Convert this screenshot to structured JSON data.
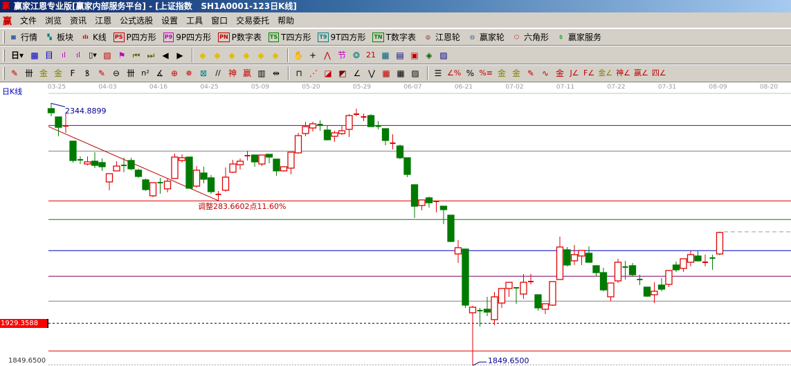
{
  "window": {
    "title": "赢家江恩专业版[赢家内部服务平台] - [上证指数   SH1A0001-123日K线]",
    "logo": "赢"
  },
  "menu": {
    "logo": "赢",
    "items": [
      "文件",
      "浏览",
      "资讯",
      "江恩",
      "公式选股",
      "设置",
      "工具",
      "窗口",
      "交易委托",
      "帮助"
    ]
  },
  "toolbar1": [
    {
      "icon": "table-icon",
      "glyph": "▦",
      "color": "#003399",
      "label": "行情"
    },
    {
      "icon": "sectors-icon",
      "glyph": "▚",
      "color": "#008080",
      "label": "板块"
    },
    {
      "icon": "candlestick-icon",
      "glyph": "ıIı",
      "color": "#d00000",
      "label": "K线"
    },
    {
      "icon": "ps-icon",
      "glyph": "PS",
      "color": "#c00000",
      "label": "P四方形"
    },
    {
      "icon": "p9-icon",
      "glyph": "P9",
      "color": "#c000c0",
      "label": "9P四方形"
    },
    {
      "icon": "pn-icon",
      "glyph": "PN",
      "color": "#c00000",
      "label": "P数字表"
    },
    {
      "icon": "ts-icon",
      "glyph": "TS",
      "color": "#008000",
      "label": "T四方形"
    },
    {
      "icon": "t9-icon",
      "glyph": "T9",
      "color": "#008080",
      "label": "9T四方形"
    },
    {
      "icon": "tn-icon",
      "glyph": "TN",
      "color": "#008000",
      "label": "T数字表"
    },
    {
      "icon": "gann-wheel-icon",
      "glyph": "◎",
      "color": "#800000",
      "label": "江恩轮"
    },
    {
      "icon": "winner-wheel-icon",
      "glyph": "◍",
      "color": "#336699",
      "label": "赢家轮"
    },
    {
      "icon": "hexagon-icon",
      "glyph": "⬡",
      "color": "#c00000",
      "label": "六角形"
    },
    {
      "icon": "dollar-icon",
      "glyph": "$",
      "color": "#33aa33",
      "label": "赢家服务"
    }
  ],
  "toolbar2": {
    "period": "日",
    "icons": [
      {
        "name": "chart-type-icon",
        "glyph": "▩",
        "color": "#0000c0"
      },
      {
        "name": "notes-icon",
        "glyph": "目",
        "color": "#0000c0"
      },
      {
        "name": "volume3-icon",
        "glyph": "ıl",
        "color": "#c000c0"
      },
      {
        "name": "volume9-icon",
        "glyph": "ıl",
        "color": "#c000c0"
      },
      {
        "name": "candle-dropdown-icon",
        "glyph": "▯▾",
        "color": "#000"
      },
      {
        "name": "indicator-icon",
        "glyph": "▧",
        "color": "#c00000"
      },
      {
        "name": "flag-icon",
        "glyph": "⚑",
        "color": "#c000c0"
      },
      {
        "name": "first-icon",
        "glyph": "⏮",
        "color": "#606000"
      },
      {
        "name": "last-icon",
        "glyph": "⏭",
        "color": "#606000"
      },
      {
        "name": "left-icon",
        "glyph": "◀",
        "color": "#000"
      },
      {
        "name": "right-icon",
        "glyph": "▶",
        "color": "#000"
      },
      {
        "name": "zoom-left-icon",
        "glyph": "◆",
        "color": "#e0c000"
      },
      {
        "name": "zoom-right-icon",
        "glyph": "◆",
        "color": "#e0c000"
      },
      {
        "name": "expand-h-icon",
        "glyph": "◆",
        "color": "#e0c000"
      },
      {
        "name": "shrink-h-icon",
        "glyph": "◆",
        "color": "#e0c000"
      },
      {
        "name": "shrink-v-icon",
        "glyph": "◆",
        "color": "#e0c000"
      },
      {
        "name": "expand-v-icon",
        "glyph": "◆",
        "color": "#e0c000"
      },
      {
        "name": "hand-icon",
        "glyph": "✋",
        "color": "#000"
      },
      {
        "name": "crosshair-icon",
        "glyph": "+",
        "color": "#000"
      },
      {
        "name": "line-tool-icon",
        "glyph": "⋀",
        "color": "#c00000"
      },
      {
        "name": "node-icon",
        "glyph": "节",
        "color": "#c000c0"
      },
      {
        "name": "brain-icon",
        "glyph": "❂",
        "color": "#008080"
      },
      {
        "name": "calendar-icon",
        "glyph": "21",
        "color": "#c00000"
      },
      {
        "name": "calculator-icon",
        "glyph": "▦",
        "color": "#006080"
      },
      {
        "name": "report-icon",
        "glyph": "▤",
        "color": "#000080"
      },
      {
        "name": "save-icon",
        "glyph": "▣",
        "color": "#c00000"
      },
      {
        "name": "network-icon",
        "glyph": "◈",
        "color": "#006000"
      },
      {
        "name": "trade-icon",
        "glyph": "▨",
        "color": "#000080"
      }
    ]
  },
  "toolbar3": [
    {
      "name": "pen-icon",
      "glyph": "✎",
      "color": "#c00000"
    },
    {
      "name": "lines-icon",
      "glyph": "卌",
      "color": "#000"
    },
    {
      "name": "gold1-icon",
      "glyph": "金",
      "color": "#808000"
    },
    {
      "name": "gold2-icon",
      "glyph": "金",
      "color": "#808000"
    },
    {
      "name": "fib-icon",
      "glyph": "F",
      "color": "#000"
    },
    {
      "name": "spiral-icon",
      "glyph": "ꝸ",
      "color": "#000"
    },
    {
      "name": "pen-ruler-icon",
      "glyph": "✎",
      "color": "#c00000"
    },
    {
      "name": "circle-ruler-icon",
      "glyph": "⊖",
      "color": "#000"
    },
    {
      "name": "parallel-icon",
      "glyph": "卌",
      "color": "#000"
    },
    {
      "name": "n2-icon",
      "glyph": "n²",
      "color": "#000"
    },
    {
      "name": "angle-icon",
      "glyph": "∡",
      "color": "#000"
    },
    {
      "name": "target-icon",
      "glyph": "⊕",
      "color": "#c00000"
    },
    {
      "name": "star-icon",
      "glyph": "✵",
      "color": "#c00000"
    },
    {
      "name": "box-icon",
      "glyph": "⊠",
      "color": "#008080"
    },
    {
      "name": "slash-icon",
      "glyph": "//",
      "color": "#000"
    },
    {
      "name": "shen-icon",
      "glyph": "神",
      "color": "#c00000"
    },
    {
      "name": "ying-icon",
      "glyph": "赢",
      "color": "#c00000"
    },
    {
      "name": "grid-icon",
      "glyph": "▥",
      "color": "#000"
    },
    {
      "name": "measure-icon",
      "glyph": "⇹",
      "color": "#000"
    },
    {
      "name": "sep",
      "glyph": ""
    },
    {
      "name": "box-line-icon",
      "glyph": "⊓",
      "color": "#000"
    },
    {
      "name": "fan-icon",
      "glyph": "⋰",
      "color": "#c00000"
    },
    {
      "name": "square-fan-icon",
      "glyph": "◪",
      "color": "#c00000"
    },
    {
      "name": "square-fan2-icon",
      "glyph": "◩",
      "color": "#800000"
    },
    {
      "name": "gann-fan-icon",
      "glyph": "∠",
      "color": "#000"
    },
    {
      "name": "zigzag-icon",
      "glyph": "⋁",
      "color": "#000"
    },
    {
      "name": "grid-red-icon",
      "glyph": "▦",
      "color": "#c00000"
    },
    {
      "name": "grid-box-icon",
      "glyph": "▦",
      "color": "#000"
    },
    {
      "name": "hatch-icon",
      "glyph": "▨",
      "color": "#000"
    },
    {
      "name": "sep",
      "glyph": ""
    },
    {
      "name": "levels-icon",
      "glyph": "☰",
      "color": "#000"
    },
    {
      "name": "pct-angle-icon",
      "glyph": "∠%",
      "color": "#c00000"
    },
    {
      "name": "percent-icon",
      "glyph": "%",
      "color": "#000"
    },
    {
      "name": "pct-lines-icon",
      "glyph": "%≡",
      "color": "#c00000"
    },
    {
      "name": "gold-circle-icon",
      "glyph": "金",
      "color": "#808000"
    },
    {
      "name": "gold-lines-icon",
      "glyph": "金",
      "color": "#808000"
    },
    {
      "name": "pen-bar-icon",
      "glyph": "✎",
      "color": "#c00000"
    },
    {
      "name": "wave-icon",
      "glyph": "∿",
      "color": "#c00000"
    },
    {
      "name": "gold-bar-icon",
      "glyph": "金",
      "color": "#c00000"
    },
    {
      "name": "j-angle-icon",
      "glyph": "J∠",
      "color": "#c00000"
    },
    {
      "name": "f-angle-icon",
      "glyph": "F∠",
      "color": "#c00000"
    },
    {
      "name": "gold-angle-icon",
      "glyph": "金∠",
      "color": "#808000"
    },
    {
      "name": "shen-angle-icon",
      "glyph": "神∠",
      "color": "#c00000"
    },
    {
      "name": "ying-angle-icon",
      "glyph": "赢∠",
      "color": "#c00000"
    },
    {
      "name": "si-angle-icon",
      "glyph": "四∠",
      "color": "#c00000"
    }
  ],
  "chart_label": "日K线",
  "date_labels": [
    "03-25",
    "04-03",
    "04-16",
    "04-25",
    "05-09",
    "05-20",
    "05-29",
    "06-07",
    "06-21",
    "07-02",
    "07-11",
    "07-22",
    "07-31",
    "08-09",
    "08-20"
  ],
  "current_price_label": "1929.3588",
  "axis_low_label": "1849.6500",
  "annotations": {
    "high": "2344.8899",
    "low": "1849.6500",
    "adjust": "调整283.6602点11.60%"
  },
  "colors": {
    "up": "#e00000",
    "down": "#007a00"
  },
  "chart_data": {
    "type": "candlestick",
    "ylim": [
      1849.65,
      2344.8899
    ],
    "current_price": 1929.3588,
    "hlines": [
      {
        "value": 2303.1,
        "color": "#800060"
      },
      {
        "value": 2254.7,
        "color": "#808080"
      },
      {
        "value": 2160.6,
        "color": "#e00000"
      },
      {
        "value": 2125.4,
        "color": "#008000"
      },
      {
        "value": 2066.6,
        "color": "#0000c0"
      },
      {
        "value": 2018.2,
        "color": "#800060"
      },
      {
        "value": 1971.2,
        "color": "#808080"
      },
      {
        "value": 1877.1,
        "color": "#e00000"
      }
    ],
    "trendline": {
      "from": 2301,
      "to": 2161.1,
      "color": "#c00000"
    },
    "ohlc": [
      [
        2334.9,
        2344.9,
        2320.5,
        2327.1
      ],
      [
        2319.2,
        2319.2,
        2282.6,
        2299.6
      ],
      [
        2299.6,
        2327.1,
        2289.2,
        2302.2
      ],
      [
        2273.5,
        2273.5,
        2233.0,
        2236.9
      ],
      [
        2238.2,
        2244.7,
        2230.3,
        2237.5
      ],
      [
        2230.3,
        2244.7,
        2227.7,
        2234.3
      ],
      [
        2235.6,
        2252.6,
        2222.5,
        2227.7
      ],
      [
        2233.0,
        2240.8,
        2217.3,
        2225.1
      ],
      [
        2196.4,
        2212.0,
        2180.7,
        2212.0
      ],
      [
        2217.3,
        2235.6,
        2217.3,
        2226.4
      ],
      [
        2227.7,
        2242.1,
        2214.7,
        2227.0
      ],
      [
        2236.9,
        2242.1,
        2218.6,
        2221.2
      ],
      [
        2218.6,
        2221.2,
        2204.2,
        2206.8
      ],
      [
        2200.3,
        2202.9,
        2179.4,
        2182.0
      ],
      [
        2170.2,
        2195.1,
        2167.6,
        2195.1
      ],
      [
        2195.1,
        2204.2,
        2174.1,
        2194.4
      ],
      [
        2183.3,
        2202.9,
        2176.8,
        2197.7
      ],
      [
        2202.9,
        2249.9,
        2202.9,
        2243.4
      ],
      [
        2236.9,
        2248.6,
        2233.0,
        2242.1
      ],
      [
        2243.4,
        2243.4,
        2184.6,
        2184.6
      ],
      [
        2188.5,
        2226.4,
        2185.9,
        2218.6
      ],
      [
        2213.3,
        2225.1,
        2193.7,
        2201.6
      ],
      [
        2204.2,
        2209.4,
        2174.1,
        2178.1
      ],
      [
        2172.2,
        2179.4,
        2161.1,
        2172.8
      ],
      [
        2180.7,
        2223.8,
        2178.1,
        2205.5
      ],
      [
        2214.7,
        2238.2,
        2213.3,
        2230.3
      ],
      [
        2229.0,
        2240.8,
        2219.9,
        2235.6
      ],
      [
        2245.4,
        2255.2,
        2236.9,
        2246.0
      ],
      [
        2247.3,
        2247.3,
        2225.1,
        2234.3
      ],
      [
        2230.3,
        2247.3,
        2226.4,
        2247.3
      ],
      [
        2248.6,
        2248.6,
        2231.6,
        2243.4
      ],
      [
        2239.5,
        2239.5,
        2208.1,
        2217.3
      ],
      [
        2217.3,
        2225.1,
        2216.0,
        2225.1
      ],
      [
        2222.5,
        2252.6,
        2210.7,
        2252.6
      ],
      [
        2251.3,
        2289.2,
        2249.9,
        2283.9
      ],
      [
        2287.8,
        2310.1,
        2282.6,
        2300.9
      ],
      [
        2298.3,
        2310.1,
        2291.8,
        2306.2
      ],
      [
        2304.8,
        2312.7,
        2293.1,
        2304.2
      ],
      [
        2294.4,
        2303.5,
        2274.8,
        2276.1
      ],
      [
        2282.6,
        2293.1,
        2272.2,
        2289.2
      ],
      [
        2287.8,
        2302.2,
        2285.2,
        2293.1
      ],
      [
        2295.7,
        2324.4,
        2281.3,
        2321.8
      ],
      [
        2323.7,
        2334.9,
        2320.5,
        2324.4
      ],
      [
        2318.5,
        2325.8,
        2311.4,
        2319.2
      ],
      [
        2321.8,
        2324.4,
        2300.9,
        2300.9
      ],
      [
        2301.6,
        2311.4,
        2295.7,
        2300.9
      ],
      [
        2297.0,
        2297.0,
        2265.6,
        2274.8
      ],
      [
        2268.9,
        2286.5,
        2257.8,
        2269.6
      ],
      [
        2264.3,
        2266.9,
        2239.5,
        2242.1
      ],
      [
        2242.1,
        2242.1,
        2205.5,
        2210.7
      ],
      [
        2191.1,
        2191.1,
        2128.4,
        2150.6
      ],
      [
        2151.9,
        2162.4,
        2142.8,
        2162.4
      ],
      [
        2166.3,
        2168.9,
        2148.0,
        2157.1
      ],
      [
        2159.1,
        2159.8,
        2138.9,
        2159.8
      ],
      [
        2150.6,
        2150.6,
        2116.6,
        2144.1
      ],
      [
        2133.6,
        2133.6,
        2082.6,
        2084.0
      ],
      [
        2060.4,
        2086.6,
        2043.4,
        2072.2
      ],
      [
        2069.6,
        2069.6,
        1958.5,
        1963.7
      ],
      [
        1949.3,
        1962.4,
        1849.65,
        1959.8
      ],
      [
        1953.3,
        1958.5,
        1923.2,
        1952.6
      ],
      [
        1955.9,
        1979.4,
        1942.8,
        1950.6
      ],
      [
        1936.3,
        1988.5,
        1925.8,
        1979.4
      ],
      [
        1967.6,
        1995.1,
        1958.5,
        1995.1
      ],
      [
        1995.1,
        2006.8,
        1979.4,
        2006.8
      ],
      [
        1996.4,
        1996.4,
        1966.3,
        1995.7
      ],
      [
        1984.6,
        2022.5,
        1975.5,
        2006.8
      ],
      [
        2007.5,
        2022.5,
        2002.9,
        2008.2
      ],
      [
        1983.3,
        1983.3,
        1953.3,
        1958.5
      ],
      [
        1955.9,
        1966.3,
        1946.7,
        1966.3
      ],
      [
        1963.7,
        2008.2,
        1962.4,
        2008.2
      ],
      [
        2012.1,
        2093.1,
        2012.1,
        2073.5
      ],
      [
        2068.3,
        2073.5,
        2036.9,
        2039.5
      ],
      [
        2047.4,
        2077.4,
        2039.5,
        2059.1
      ],
      [
        2056.5,
        2067.0,
        2039.5,
        2067.0
      ],
      [
        2061.7,
        2074.8,
        2044.7,
        2044.7
      ],
      [
        2038.2,
        2038.2,
        2018.6,
        2025.1
      ],
      [
        2025.1,
        2034.3,
        1989.9,
        1992.5
      ],
      [
        1979.4,
        2005.5,
        1971.6,
        2005.5
      ],
      [
        2009.5,
        2051.3,
        2005.5,
        2044.7
      ],
      [
        2035.6,
        2047.4,
        2012.1,
        2034.9
      ],
      [
        2038.2,
        2043.4,
        2017.3,
        2021.2
      ],
      [
        2012.1,
        2021.2,
        2001.6,
        2011.4
      ],
      [
        1997.7,
        1997.7,
        1979.4,
        1980.7
      ],
      [
        1983.3,
        2006.8,
        1967.6,
        1989.9
      ],
      [
        2001.6,
        2014.7,
        1989.9,
        1993.8
      ],
      [
        2002.9,
        2029.1,
        1997.7,
        2029.1
      ],
      [
        2039.5,
        2046.1,
        2026.4,
        2030.4
      ],
      [
        2033.0,
        2051.3,
        2026.4,
        2051.3
      ],
      [
        2044.7,
        2067.0,
        2036.9,
        2059.1
      ],
      [
        2056.5,
        2067.0,
        2046.1,
        2047.4
      ],
      [
        2044.0,
        2059.1,
        2036.9,
        2044.7
      ],
      [
        2052.6,
        2059.1,
        2030.4,
        2051.9
      ],
      [
        2060.4,
        2102.3,
        2057.8,
        2100.9
      ]
    ]
  }
}
